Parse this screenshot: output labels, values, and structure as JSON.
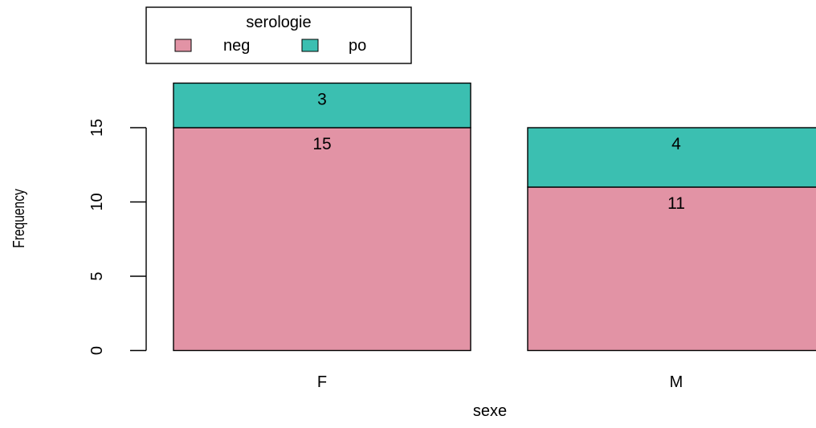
{
  "chart_data": {
    "type": "bar",
    "stacked": true,
    "categories": [
      "F",
      "M"
    ],
    "series": [
      {
        "name": "neg",
        "values": [
          15,
          11
        ],
        "color": "#E293A5"
      },
      {
        "name": "po",
        "values": [
          3,
          4
        ],
        "color": "#3BBFB1"
      }
    ],
    "xlabel": "sexe",
    "ylabel": "Frequency",
    "yticks": [
      "0",
      "5",
      "10",
      "15"
    ],
    "ylim": [
      0,
      18
    ],
    "grid": false,
    "legend": {
      "title": "serologie",
      "placement": "top-left",
      "entries": [
        "neg",
        "po"
      ]
    }
  }
}
